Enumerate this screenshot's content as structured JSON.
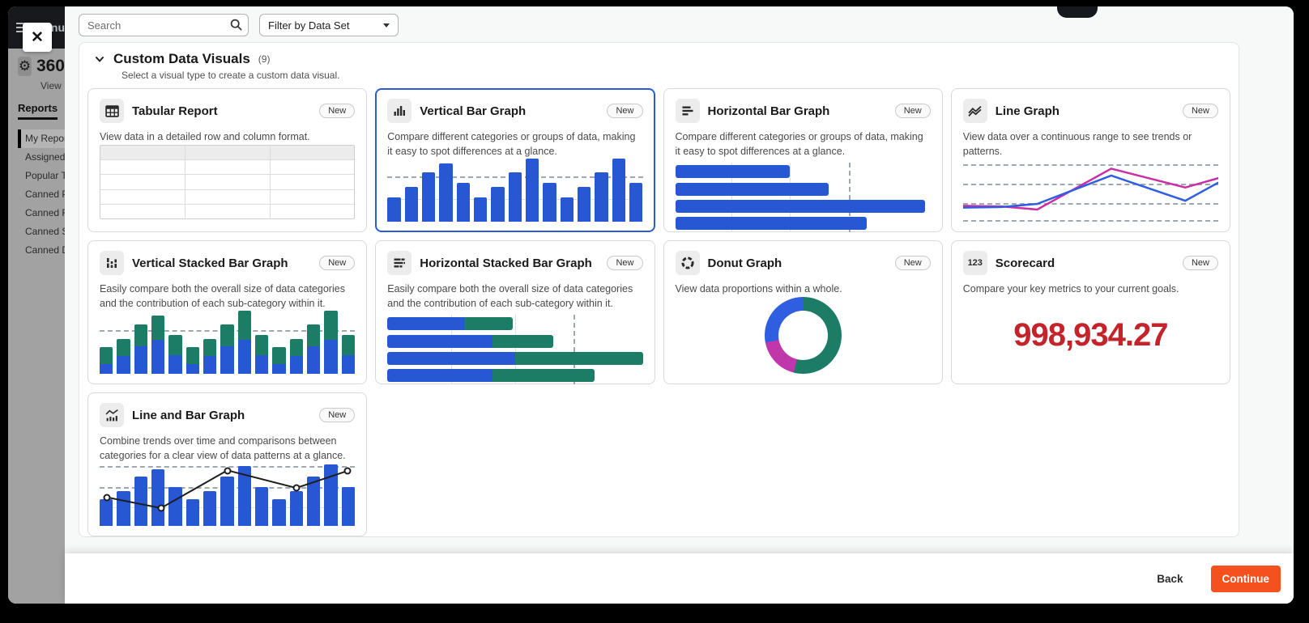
{
  "colors": {
    "accent_blue": "#2a5cd5",
    "bar_blue": "#2857d4",
    "green": "#1d7c66",
    "magenta": "#bf37ab",
    "line_blue": "#2f5fe0",
    "line_magenta": "#cb2da4",
    "line_black": "#1d1d1d",
    "scorecard_red": "#c4232b",
    "continue_orange": "#f4511e"
  },
  "icons": {
    "close": "x-cross",
    "menu": "hamburger",
    "gear": "gear",
    "search": "magnifier",
    "filter_caret": "triangle-down",
    "section_chevron": "chevron-down"
  },
  "sidebar": {
    "menu_label": "Menu",
    "app_title": "360",
    "app_subtitle": "View",
    "tab_label": "Reports",
    "items": [
      {
        "label": "My Reports",
        "active": true
      },
      {
        "label": "Assigned Re",
        "active": false
      },
      {
        "label": "Popular Ten",
        "active": false
      },
      {
        "label": "Canned Pro",
        "active": false
      },
      {
        "label": "Canned Fin",
        "active": false
      },
      {
        "label": "Canned Sch",
        "active": false
      },
      {
        "label": "Canned Dai",
        "active": false
      }
    ]
  },
  "modal": {
    "search_placeholder": "Search",
    "filter_label": "Filter by Data Set",
    "section_title": "Custom Data Visuals",
    "section_count": "(9)",
    "section_subtitle": "Select a visual type to create a custom data visual.",
    "back_label": "Back",
    "continue_label": "Continue"
  },
  "cards": [
    {
      "title": "Tabular Report",
      "badge": "New",
      "icon": "table-icon",
      "selected": false,
      "preview": "table",
      "description": "View data in a detailed row and column format."
    },
    {
      "title": "Vertical Bar Graph",
      "badge": "New",
      "icon": "vertical-bars-icon",
      "selected": true,
      "preview": "vbars",
      "description": "Compare different categories or groups of data, making it easy to spot differences at a glance."
    },
    {
      "title": "Horizontal Bar Graph",
      "badge": "New",
      "icon": "horizontal-bars-icon",
      "selected": false,
      "preview": "hbars",
      "description": "Compare different categories or groups of data, making it easy to spot differences at a glance."
    },
    {
      "title": "Line Graph",
      "badge": "New",
      "icon": "line-graph-icon",
      "selected": false,
      "preview": "line",
      "description": "View data over a continuous range to see trends or patterns."
    },
    {
      "title": "Vertical Stacked Bar Graph",
      "badge": "New",
      "icon": "vertical-stacked-bars-icon",
      "selected": false,
      "preview": "vstacked",
      "description": "Easily compare both the overall size of data categories and the contribution of each sub-category within it."
    },
    {
      "title": "Horizontal Stacked Bar Graph",
      "badge": "New",
      "icon": "horizontal-stacked-bars-icon",
      "selected": false,
      "preview": "hstacked",
      "description": "Easily compare both the overall size of data categories and the contribution of each sub-category within it."
    },
    {
      "title": "Donut Graph",
      "badge": "New",
      "icon": "donut-icon",
      "selected": false,
      "preview": "donut",
      "description": "View data proportions within a whole."
    },
    {
      "title": "Scorecard",
      "badge": "New",
      "icon": "numbers-123-icon",
      "selected": false,
      "preview": "score",
      "description": "Compare your key metrics to your current goals."
    },
    {
      "title": "Line and Bar Graph",
      "badge": "New",
      "icon": "line-and-bars-icon",
      "selected": false,
      "preview": "linebar",
      "description": "Combine trends over time and comparisons between categories for a clear view of data patterns at a glance."
    }
  ],
  "previews": {
    "table": {
      "columns": 3,
      "rows": 5
    },
    "vbars": {
      "values": [
        38,
        55,
        78,
        92,
        62,
        38,
        55,
        78,
        100,
        62,
        38,
        55,
        78,
        100,
        62
      ],
      "dash_y": 72,
      "solid_y": 36
    },
    "hbars": {
      "values": [
        45,
        60,
        98,
        75
      ],
      "dash_x": 68,
      "ticks": [
        22,
        45
      ]
    },
    "line": {
      "gridlines": [
        9,
        40,
        71,
        98
      ],
      "series": [
        {
          "color_key": "line_magenta",
          "points": [
            [
              0,
              75
            ],
            [
              15,
              76
            ],
            [
              29,
              81
            ],
            [
              58,
              16
            ],
            [
              87,
              46
            ],
            [
              100,
              31
            ]
          ]
        },
        {
          "color_key": "line_blue",
          "points": [
            [
              0,
              78
            ],
            [
              15,
              77
            ],
            [
              29,
              72
            ],
            [
              58,
              27
            ],
            [
              87,
              67
            ],
            [
              100,
              38
            ]
          ]
        }
      ]
    },
    "vstacked": {
      "totals": [
        42,
        55,
        78,
        92,
        62,
        42,
        55,
        78,
        100,
        62,
        42,
        55,
        78,
        100,
        62
      ],
      "blue": [
        16,
        28,
        44,
        54,
        30,
        16,
        28,
        44,
        54,
        30,
        16,
        28,
        44,
        54,
        30
      ],
      "dash_y": 70
    },
    "hstacked": {
      "bars": [
        [
          30,
          19
        ],
        [
          41,
          24
        ],
        [
          50,
          50
        ],
        [
          41,
          40
        ]
      ],
      "dash_x": 73,
      "ticks": [
        25,
        50
      ]
    },
    "donut": {
      "segments": [
        {
          "color_key": "green",
          "pct": 54
        },
        {
          "color_key": "magenta",
          "pct": 18
        },
        {
          "color_key": "line_blue",
          "pct": 28
        }
      ]
    },
    "score": {
      "value": "998,934.27"
    },
    "linebar": {
      "values": [
        42,
        55,
        78,
        90,
        62,
        42,
        55,
        78,
        95,
        62,
        42,
        55,
        78,
        98,
        62
      ],
      "dash_lines": [
        62,
        95
      ],
      "solid_y": 30,
      "line_points": [
        [
          3,
          45
        ],
        [
          24,
          28
        ],
        [
          50,
          88
        ],
        [
          77,
          60
        ],
        [
          97,
          87
        ]
      ]
    }
  }
}
